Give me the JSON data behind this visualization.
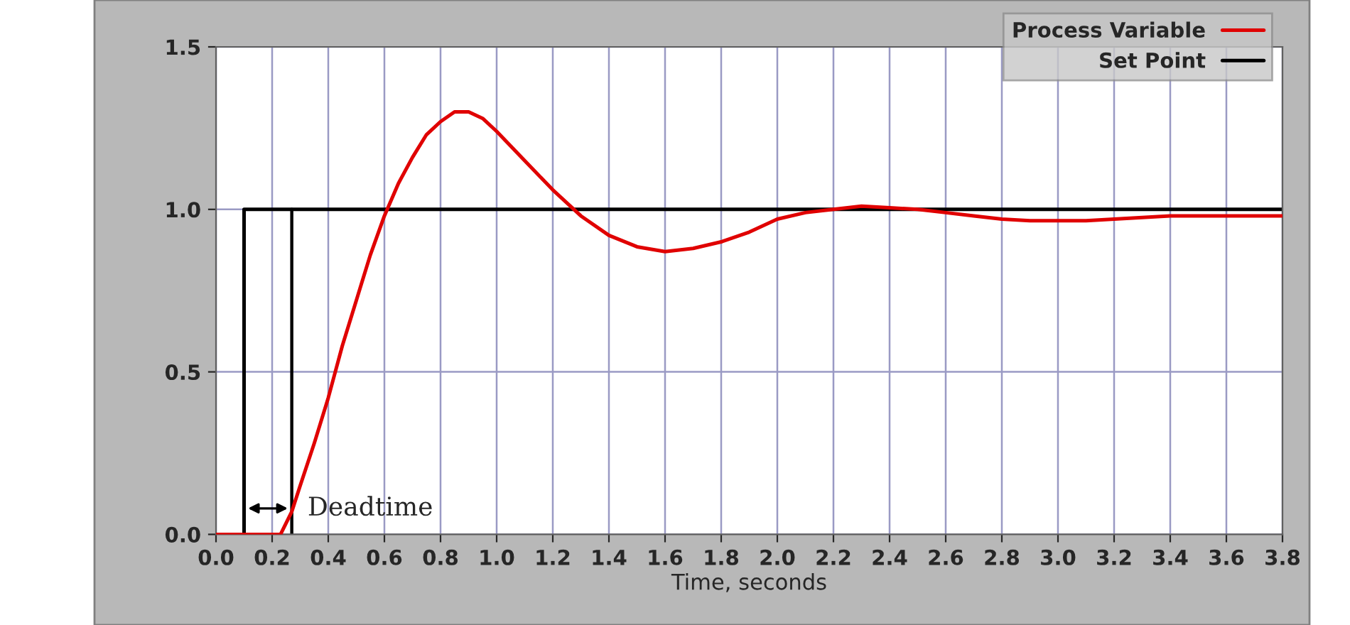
{
  "chart_data": {
    "type": "line",
    "xlabel": "Time, seconds",
    "xlim": [
      0,
      3.8
    ],
    "xticks": [
      {
        "value": 0,
        "label": "0.0"
      },
      {
        "value": 0.2,
        "label": "0.2"
      },
      {
        "value": 0.4,
        "label": "0.4"
      },
      {
        "value": 0.6,
        "label": "0.6"
      },
      {
        "value": 0.8,
        "label": "0.8"
      },
      {
        "value": 1.0,
        "label": "1.0"
      },
      {
        "value": 1.2,
        "label": "1.2"
      },
      {
        "value": 1.4,
        "label": "1.4"
      },
      {
        "value": 1.6,
        "label": "1.6"
      },
      {
        "value": 1.8,
        "label": "1.8"
      },
      {
        "value": 2.0,
        "label": "2.0"
      },
      {
        "value": 2.2,
        "label": "2.2"
      },
      {
        "value": 2.4,
        "label": "2.4"
      },
      {
        "value": 2.6,
        "label": "2.6"
      },
      {
        "value": 2.8,
        "label": "2.8"
      },
      {
        "value": 3.0,
        "label": "3.0"
      },
      {
        "value": 3.2,
        "label": "3.2"
      },
      {
        "value": 3.4,
        "label": "3.4"
      },
      {
        "value": 3.6,
        "label": "3.6"
      },
      {
        "value": 3.8,
        "label": "3.8"
      }
    ],
    "ylim": [
      0,
      1.5
    ],
    "yticks": [
      {
        "value": 0,
        "label": "0.0"
      },
      {
        "value": 0.5,
        "label": "0.5"
      },
      {
        "value": 1.0,
        "label": "1.0"
      },
      {
        "value": 1.5,
        "label": "1.5"
      }
    ],
    "grid": true,
    "legend": "top right",
    "series": [
      {
        "name": "Process Variable",
        "color": "#e00000",
        "x": [
          0,
          0.23,
          0.27,
          0.3,
          0.35,
          0.4,
          0.45,
          0.5,
          0.55,
          0.6,
          0.65,
          0.7,
          0.75,
          0.8,
          0.85,
          0.9,
          0.95,
          1.0,
          1.1,
          1.2,
          1.3,
          1.4,
          1.5,
          1.6,
          1.7,
          1.8,
          1.9,
          2.0,
          2.1,
          2.2,
          2.3,
          2.4,
          2.5,
          2.6,
          2.7,
          2.8,
          2.9,
          3.0,
          3.1,
          3.2,
          3.3,
          3.4,
          3.6,
          3.8
        ],
        "values": [
          0,
          0,
          0.07,
          0.15,
          0.28,
          0.42,
          0.58,
          0.72,
          0.86,
          0.98,
          1.08,
          1.16,
          1.23,
          1.27,
          1.3,
          1.3,
          1.28,
          1.24,
          1.15,
          1.06,
          0.98,
          0.92,
          0.885,
          0.87,
          0.88,
          0.9,
          0.93,
          0.97,
          0.99,
          1.0,
          1.01,
          1.005,
          1.0,
          0.99,
          0.98,
          0.97,
          0.965,
          0.965,
          0.965,
          0.97,
          0.975,
          0.98,
          0.98,
          0.98
        ]
      },
      {
        "name": "Set Point",
        "color": "#000000",
        "type": "step",
        "x": [
          0,
          0.1,
          3.8
        ],
        "values": [
          0,
          1,
          1
        ]
      }
    ],
    "ref_lines": [
      {
        "axis": "x",
        "value": 0.27,
        "color": "#000000",
        "line_style": "solid"
      }
    ],
    "annotations": [
      {
        "text": "Deadtime",
        "x": 0.27,
        "y": 0.08
      }
    ]
  }
}
